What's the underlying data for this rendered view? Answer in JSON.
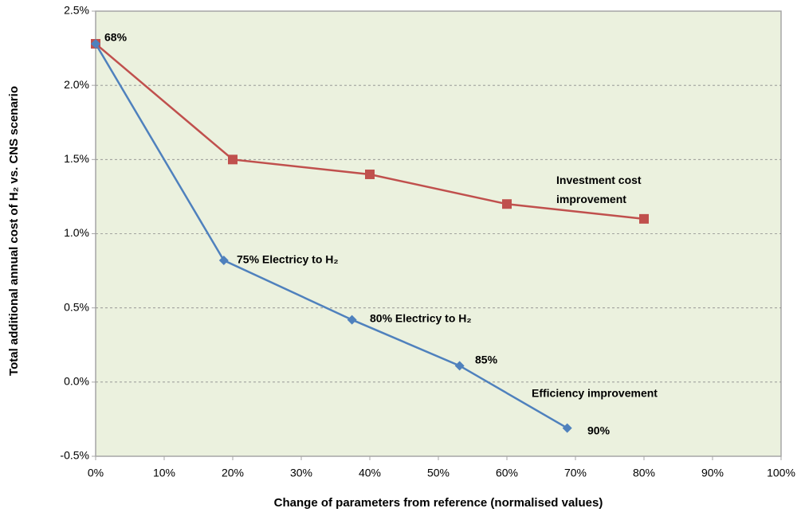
{
  "chart_data": {
    "type": "line",
    "xlabel": "Change of parameters from reference (normalised values)",
    "ylabel": "Total additional annual cost  of H₂ vs. CNS scenario",
    "xlim": [
      0,
      100
    ],
    "xticks": [
      {
        "value": 0,
        "label": "0%"
      },
      {
        "value": 10,
        "label": "10%"
      },
      {
        "value": 20,
        "label": "20%"
      },
      {
        "value": 30,
        "label": "30%"
      },
      {
        "value": 40,
        "label": "40%"
      },
      {
        "value": 50,
        "label": "50%"
      },
      {
        "value": 60,
        "label": "60%"
      },
      {
        "value": 70,
        "label": "70%"
      },
      {
        "value": 80,
        "label": "80%"
      },
      {
        "value": 90,
        "label": "90%"
      },
      {
        "value": 100,
        "label": "100%"
      }
    ],
    "ylim": [
      -0.5,
      2.5
    ],
    "yticks": [
      {
        "value": -0.5,
        "label": "-0.5%"
      },
      {
        "value": 0,
        "label": "0.0%"
      },
      {
        "value": 0.5,
        "label": "0.5%"
      },
      {
        "value": 1,
        "label": "1.0%"
      },
      {
        "value": 1.5,
        "label": "1.5%"
      },
      {
        "value": 2,
        "label": "2.0%"
      },
      {
        "value": 2.5,
        "label": "2.5%"
      }
    ],
    "grid": true,
    "series": [
      {
        "name": "Investment cost improvement",
        "color": "#c0504d",
        "marker": "square",
        "x": [
          0,
          20,
          40,
          60,
          80
        ],
        "values": [
          2.28,
          1.5,
          1.4,
          1.2,
          1.1
        ]
      },
      {
        "name": "Efficiency improvement",
        "color": "#4f81bd",
        "marker": "diamond",
        "x": [
          0,
          18.7,
          37.4,
          53.1,
          68.8
        ],
        "values": [
          2.28,
          0.82,
          0.42,
          0.11,
          -0.31
        ]
      }
    ],
    "annotations": [
      "68%",
      "75% Electricy to H₂",
      "80% Electricy to H₂",
      "85%",
      "90%"
    ]
  }
}
